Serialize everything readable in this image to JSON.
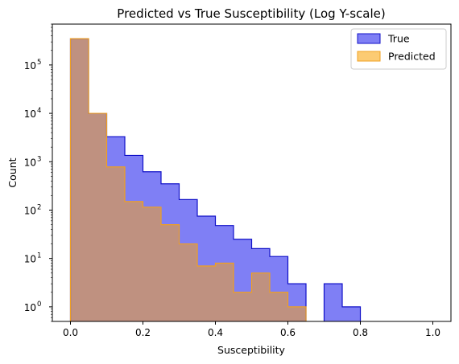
{
  "chart_data": {
    "type": "histogram",
    "title": "Predicted vs True Susceptibility (Log Y-scale)",
    "xlabel": "Susceptibility",
    "ylabel": "Count",
    "xlim": [
      -0.05,
      1.05
    ],
    "ylim": [
      0.5,
      700000
    ],
    "yscale": "log",
    "grid": false,
    "legend_position": "top-right",
    "bin_edges": [
      0.0,
      0.05,
      0.1,
      0.15,
      0.2,
      0.25,
      0.3,
      0.35,
      0.4,
      0.45,
      0.5,
      0.55,
      0.6,
      0.65,
      0.7,
      0.75,
      0.8,
      0.85,
      0.9,
      0.95,
      1.0
    ],
    "x_ticks": [
      {
        "value": 0.0,
        "label": "0.0"
      },
      {
        "value": 0.2,
        "label": "0.2"
      },
      {
        "value": 0.4,
        "label": "0.4"
      },
      {
        "value": 0.6,
        "label": "0.6"
      },
      {
        "value": 0.8,
        "label": "0.8"
      },
      {
        "value": 1.0,
        "label": "1.0"
      }
    ],
    "y_ticks": [
      {
        "value": 1,
        "base": "10",
        "exp": "0"
      },
      {
        "value": 10,
        "base": "10",
        "exp": "1"
      },
      {
        "value": 100,
        "base": "10",
        "exp": "2"
      },
      {
        "value": 1000,
        "base": "10",
        "exp": "3"
      },
      {
        "value": 10000,
        "base": "10",
        "exp": "4"
      },
      {
        "value": 100000,
        "base": "10",
        "exp": "5"
      }
    ],
    "series": [
      {
        "name": "True",
        "fill": "#7f7ff5",
        "edge": "#1010c8",
        "counts": [
          350000,
          10000,
          3300,
          1350,
          620,
          350,
          165,
          75,
          48,
          25,
          16,
          11,
          3,
          0,
          3,
          1,
          0,
          0,
          0,
          0
        ]
      },
      {
        "name": "Predicted",
        "fill": "#fccb73",
        "edge": "#f0a020",
        "counts": [
          350000,
          10000,
          780,
          150,
          115,
          50,
          20,
          7,
          8,
          2,
          5,
          2,
          1,
          0,
          0,
          0,
          0,
          0,
          0,
          0
        ]
      }
    ],
    "overlap_fill": "#bf9180"
  }
}
